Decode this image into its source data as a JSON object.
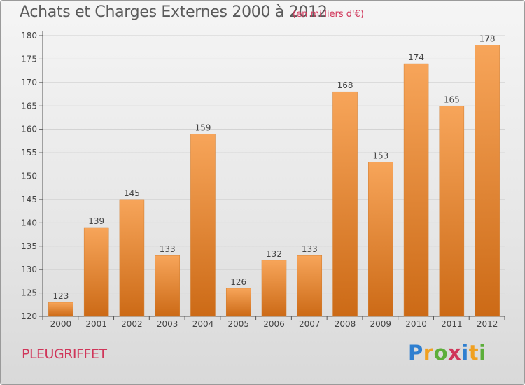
{
  "header": {
    "title": "Achats et Charges Externes 2000 à 2012",
    "unit": "(en milliers d'€)"
  },
  "footer": {
    "place": "PLEUGRIFFET",
    "logo_text": "Proxiti"
  },
  "colors": {
    "bar_top": "#f7a55a",
    "bar_bottom": "#cc6a16",
    "title": "#5a5a5a",
    "accent": "#d0365a",
    "grid": "#cfcfcf"
  },
  "chart_data": {
    "type": "bar",
    "title": "Achats et Charges Externes 2000 à 2012",
    "subtitle": "(en milliers d'€)",
    "categories": [
      "2000",
      "2001",
      "2002",
      "2003",
      "2004",
      "2005",
      "2006",
      "2007",
      "2008",
      "2009",
      "2010",
      "2011",
      "2012"
    ],
    "values": [
      123,
      139,
      145,
      133,
      159,
      126,
      132,
      133,
      168,
      153,
      174,
      165,
      178
    ],
    "ylim": [
      120,
      180
    ],
    "yticks": [
      120,
      125,
      130,
      135,
      140,
      145,
      150,
      155,
      160,
      165,
      170,
      175,
      180
    ],
    "grid": true,
    "xlabel": "",
    "ylabel": ""
  }
}
